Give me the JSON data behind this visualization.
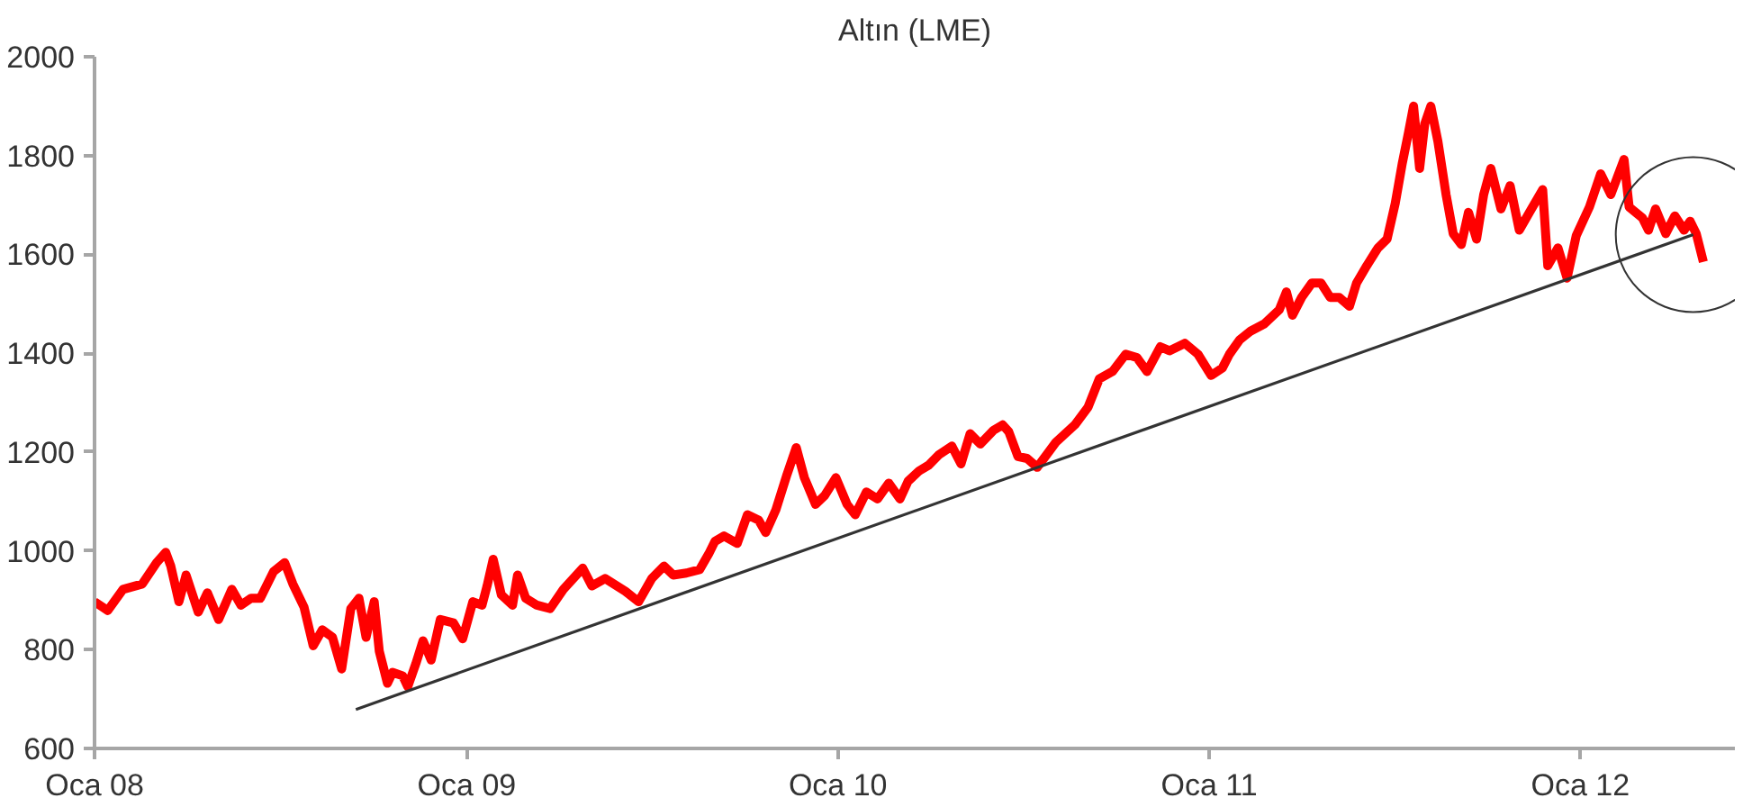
{
  "chart_data": {
    "type": "line",
    "title": "Altın (LME)",
    "xlim": [
      "2008-01-01",
      "2012-06-01"
    ],
    "xticks": [
      {
        "value": "2008-01-01",
        "label": "Oca 08"
      },
      {
        "value": "2009-01-01",
        "label": "Oca 09"
      },
      {
        "value": "2010-01-01",
        "label": "Oca 10"
      },
      {
        "value": "2011-01-01",
        "label": "Oca 11"
      },
      {
        "value": "2012-01-01",
        "label": "Oca 12"
      }
    ],
    "ylim": [
      600,
      2000
    ],
    "yticks": [
      600,
      800,
      1000,
      1200,
      1400,
      1600,
      1800,
      2000
    ],
    "grid": false,
    "series": [
      {
        "color": "#ff0000",
        "x": [
          "2008-01-01",
          "2008-01-14",
          "2008-01-29",
          "2008-02-17",
          "2008-03-02",
          "2008-03-11",
          "2008-03-16",
          "2008-03-24",
          "2008-03-31",
          "2008-04-12",
          "2008-04-21",
          "2008-05-02",
          "2008-05-15",
          "2008-05-24",
          "2008-06-03",
          "2008-06-12",
          "2008-06-25",
          "2008-07-06",
          "2008-07-14",
          "2008-07-25",
          "2008-08-03",
          "2008-08-12",
          "2008-08-22",
          "2008-08-31",
          "2008-09-09",
          "2008-09-17",
          "2008-09-24",
          "2008-10-02",
          "2008-10-07",
          "2008-10-15",
          "2008-10-20",
          "2008-10-30",
          "2008-11-04",
          "2008-11-12",
          "2008-11-19",
          "2008-11-27",
          "2008-12-06",
          "2008-12-19",
          "2008-12-28",
          "2009-01-07",
          "2009-01-16",
          "2009-01-21",
          "2009-01-27",
          "2009-02-04",
          "2009-02-15",
          "2009-02-20",
          "2009-02-28",
          "2009-03-11",
          "2009-03-24",
          "2009-04-06",
          "2009-04-25",
          "2009-05-04",
          "2009-05-17",
          "2009-06-06",
          "2009-06-19",
          "2009-07-02",
          "2009-07-14",
          "2009-07-23",
          "2009-08-05",
          "2009-08-18",
          "2009-08-27",
          "2009-09-02",
          "2009-09-11",
          "2009-09-24",
          "2009-10-04",
          "2009-10-15",
          "2009-10-22",
          "2009-11-01",
          "2009-11-12",
          "2009-11-21",
          "2009-11-29",
          "2009-12-10",
          "2009-12-19",
          "2009-12-30",
          "2010-01-10",
          "2010-01-18",
          "2010-01-29",
          "2010-02-09",
          "2010-02-20",
          "2010-03-03",
          "2010-03-11",
          "2010-03-22",
          "2010-03-31",
          "2010-04-10",
          "2010-04-23",
          "2010-05-02",
          "2010-05-11",
          "2010-05-21",
          "2010-06-03",
          "2010-06-12",
          "2010-06-18",
          "2010-06-27",
          "2010-07-06",
          "2010-07-16",
          "2010-07-25",
          "2010-08-03",
          "2010-08-22",
          "2010-09-04",
          "2010-09-15",
          "2010-09-28",
          "2010-10-11",
          "2010-10-22",
          "2010-11-01",
          "2010-11-14",
          "2010-11-23",
          "2010-12-08",
          "2010-12-21",
          "2011-01-03",
          "2011-01-14",
          "2011-01-21",
          "2011-01-31",
          "2011-02-11",
          "2011-02-24",
          "2011-03-11",
          "2011-03-18",
          "2011-03-24",
          "2011-04-02",
          "2011-04-12",
          "2011-04-21",
          "2011-04-30",
          "2011-05-09",
          "2011-05-19",
          "2011-05-26",
          "2011-06-05",
          "2011-06-16",
          "2011-06-25",
          "2011-07-03",
          "2011-07-10",
          "2011-07-16",
          "2011-07-21",
          "2011-07-27",
          "2011-08-01",
          "2011-08-07",
          "2011-08-14",
          "2011-08-22",
          "2011-08-29",
          "2011-09-06",
          "2011-09-13",
          "2011-09-21",
          "2011-09-28",
          "2011-10-05",
          "2011-10-15",
          "2011-10-24",
          "2011-11-02",
          "2011-11-12",
          "2011-11-25",
          "2011-11-30",
          "2011-12-10",
          "2011-12-19",
          "2011-12-28",
          "2012-01-10",
          "2012-01-21",
          "2012-01-31",
          "2012-02-13",
          "2012-02-18",
          "2012-03-02",
          "2012-03-08",
          "2012-03-15",
          "2012-03-25",
          "2012-04-03",
          "2012-04-12",
          "2012-04-18",
          "2012-04-24",
          "2012-05-01"
        ],
        "values": [
          897,
          879,
          922,
          933,
          976,
          997,
          969,
          897,
          951,
          876,
          915,
          861,
          922,
          890,
          904,
          904,
          958,
          976,
          933,
          886,
          808,
          840,
          825,
          761,
          883,
          904,
          825,
          897,
          797,
          732,
          754,
          747,
          725,
          772,
          818,
          779,
          861,
          854,
          822,
          897,
          890,
          929,
          983,
          911,
          890,
          951,
          904,
          890,
          883,
          922,
          965,
          929,
          944,
          918,
          897,
          944,
          969,
          951,
          955,
          962,
          994,
          1019,
          1030,
          1015,
          1073,
          1062,
          1037,
          1083,
          1155,
          1209,
          1148,
          1094,
          1112,
          1148,
          1094,
          1073,
          1119,
          1105,
          1137,
          1105,
          1141,
          1162,
          1173,
          1194,
          1212,
          1176,
          1237,
          1216,
          1244,
          1255,
          1241,
          1191,
          1187,
          1169,
          1194,
          1219,
          1255,
          1291,
          1348,
          1363,
          1398,
          1391,
          1363,
          1413,
          1405,
          1420,
          1398,
          1355,
          1370,
          1398,
          1427,
          1445,
          1459,
          1488,
          1524,
          1477,
          1513,
          1542,
          1542,
          1513,
          1513,
          1495,
          1542,
          1577,
          1613,
          1631,
          1703,
          1785,
          1846,
          1900,
          1774,
          1864,
          1900,
          1828,
          1721,
          1642,
          1620,
          1685,
          1631,
          1721,
          1774,
          1692,
          1739,
          1649,
          1685,
          1731,
          1577,
          1613,
          1552,
          1638,
          1696,
          1763,
          1721,
          1792,
          1696,
          1674,
          1649,
          1692,
          1642,
          1678,
          1649,
          1667,
          1642,
          1585
        ]
      },
      {
        "type": "line",
        "color": "#333333",
        "x": [
          "2008-09-14",
          "2012-04-21"
        ],
        "values": [
          679,
          1640
        ]
      }
    ]
  }
}
